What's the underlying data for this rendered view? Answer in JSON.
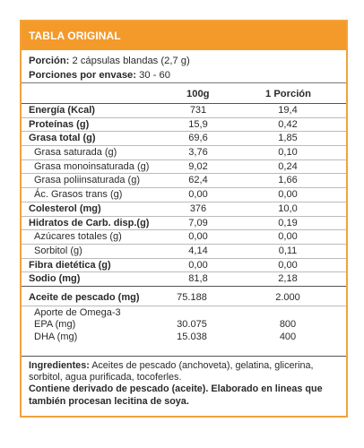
{
  "header": {
    "title": "TABLA ORIGINAL"
  },
  "serving": {
    "portion_label": "Porción:",
    "portion_value": "2 cápsulas blandas (2,7 g)",
    "per_pack_label": "Porciones por envase:",
    "per_pack_value": "30 - 60"
  },
  "columns": {
    "col1": "100g",
    "col2": "1 Porción"
  },
  "nutrients": [
    {
      "name": "Energía (Kcal)",
      "v100": "731",
      "vport": "19,4",
      "bold": true
    },
    {
      "name": "Proteínas (g)",
      "v100": "15,9",
      "vport": "0,42",
      "bold": true
    },
    {
      "name": "Grasa total (g)",
      "v100": "69,6",
      "vport": "1,85",
      "bold": true
    },
    {
      "name": "Grasa saturada (g)",
      "v100": "3,76",
      "vport": "0,10",
      "sub": true
    },
    {
      "name": "Grasa monoinsaturada (g)",
      "v100": "9,02",
      "vport": "0,24",
      "sub": true
    },
    {
      "name": "Grasa poliinsaturada (g)",
      "v100": "62,4",
      "vport": "1,66",
      "sub": true
    },
    {
      "name": "Ác. Grasos trans (g)",
      "v100": "0,00",
      "vport": "0,00",
      "sub": true
    },
    {
      "name": "Colesterol (mg)",
      "v100": "376",
      "vport": "10,0",
      "bold": true
    },
    {
      "name": "Hidratos de Carb. disp.(g)",
      "v100": "7,09",
      "vport": "0,19",
      "bold": true
    },
    {
      "name": "Azúcares totales (g)",
      "v100": "0,00",
      "vport": "0,00",
      "sub": true
    },
    {
      "name": "Sorbitol (g)",
      "v100": "4,14",
      "vport": "0,11",
      "sub": true
    },
    {
      "name": "Fibra dietética (g)",
      "v100": "0,00",
      "vport": "0,00",
      "bold": true
    },
    {
      "name": "Sodio (mg)",
      "v100": "81,8",
      "vport": "2,18",
      "bold": true
    }
  ],
  "fish_oil": {
    "name": "Aceite de pescado (mg)",
    "v100": "75.188",
    "vport": "2.000",
    "omega_label": "Aporte de Omega-3",
    "epa": {
      "name": "EPA (mg)",
      "v100": "30.075",
      "vport": "800"
    },
    "dha": {
      "name": "DHA (mg)",
      "v100": "15.038",
      "vport": "400"
    }
  },
  "ingredients": {
    "label": "Ingredientes:",
    "text": "Aceites de pescado (anchoveta), gelatina, glicerina, sorbitol, agua purificada, tocoferles.",
    "notice": "Contiene derivado de pescado (aceite). Elaborado en lineas que también procesan lecitina de soya."
  }
}
